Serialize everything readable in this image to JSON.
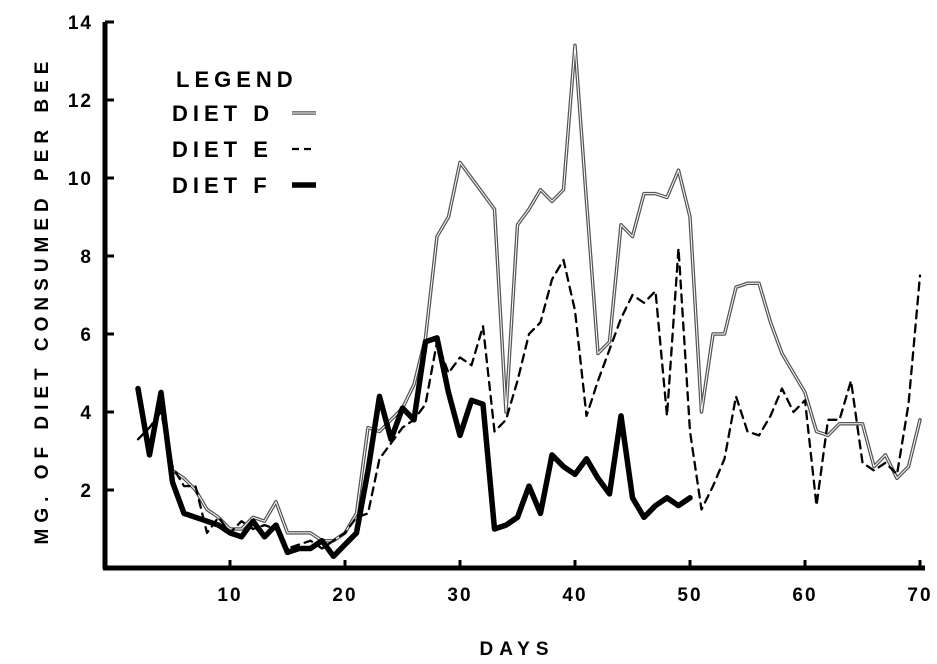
{
  "chart_data": {
    "type": "line",
    "xlabel": "DAYS",
    "ylabel": "MG. OF DIET CONSUMED PER BEE",
    "xlim": [
      0,
      70
    ],
    "ylim": [
      0,
      14
    ],
    "xticks": [
      "10",
      "20",
      "30",
      "40",
      "50",
      "60",
      "70"
    ],
    "yticks": [
      "2",
      "4",
      "6",
      "8",
      "10",
      "12",
      "14"
    ],
    "legend": {
      "title": "LEGEND",
      "position": "top-left"
    },
    "series": [
      {
        "name": "DIET  D",
        "style": "double-thin",
        "x": [
          2,
          3,
          4,
          5,
          6,
          7,
          8,
          9,
          10,
          11,
          12,
          13,
          14,
          15,
          16,
          17,
          18,
          19,
          20,
          21,
          22,
          23,
          24,
          25,
          26,
          27,
          28,
          29,
          30,
          31,
          32,
          33,
          34,
          35,
          36,
          37,
          38,
          39,
          40,
          41,
          42,
          43,
          44,
          45,
          46,
          47,
          48,
          49,
          50,
          51,
          52,
          53,
          54,
          55,
          56,
          57,
          58,
          59,
          60,
          61,
          62,
          63,
          64,
          65,
          66,
          67,
          68,
          69,
          70
        ],
        "values": [
          4.5,
          3.0,
          4.5,
          2.5,
          2.3,
          2.0,
          1.5,
          1.3,
          1.0,
          1.0,
          1.3,
          1.2,
          1.7,
          0.9,
          0.9,
          0.9,
          0.7,
          0.7,
          0.9,
          1.4,
          3.6,
          3.5,
          3.8,
          4.1,
          4.7,
          5.9,
          8.5,
          9.0,
          10.4,
          10.0,
          9.6,
          9.2,
          4.0,
          8.8,
          9.2,
          9.7,
          9.4,
          9.7,
          13.4,
          9.4,
          5.5,
          5.8,
          8.8,
          8.5,
          9.6,
          9.6,
          9.5,
          10.2,
          9.0,
          4.0,
          6.0,
          6.0,
          7.2,
          7.3,
          7.3,
          6.3,
          5.5,
          5.0,
          4.5,
          3.5,
          3.4,
          3.7,
          3.7,
          3.7,
          2.6,
          2.9,
          2.3,
          2.6,
          3.8
        ]
      },
      {
        "name": "DIET  E",
        "style": "dashed",
        "x": [
          2,
          3,
          4,
          5,
          6,
          7,
          8,
          9,
          10,
          11,
          12,
          13,
          14,
          15,
          16,
          17,
          18,
          19,
          20,
          21,
          22,
          23,
          24,
          25,
          26,
          27,
          28,
          29,
          30,
          31,
          32,
          33,
          34,
          35,
          36,
          37,
          38,
          39,
          40,
          41,
          42,
          43,
          44,
          45,
          46,
          47,
          48,
          49,
          50,
          51,
          52,
          53,
          54,
          55,
          56,
          57,
          58,
          59,
          60,
          61,
          62,
          63,
          64,
          65,
          66,
          67,
          68,
          69,
          70
        ],
        "values": [
          3.3,
          3.6,
          4.0,
          2.6,
          2.1,
          2.1,
          0.9,
          1.3,
          0.9,
          1.2,
          1.0,
          1.1,
          1.0,
          0.5,
          0.6,
          0.7,
          0.5,
          0.7,
          0.9,
          1.3,
          1.4,
          2.8,
          3.2,
          3.6,
          3.8,
          4.2,
          5.8,
          5.0,
          5.4,
          5.2,
          6.2,
          3.5,
          3.8,
          4.8,
          6.0,
          6.3,
          7.4,
          7.9,
          6.6,
          3.9,
          4.8,
          5.6,
          6.4,
          7.0,
          6.8,
          7.1,
          3.9,
          8.2,
          3.5,
          1.5,
          2.1,
          2.8,
          4.4,
          3.5,
          3.4,
          3.9,
          4.6,
          4.0,
          4.3,
          1.6,
          3.8,
          3.8,
          4.8,
          2.7,
          2.5,
          2.7,
          2.4,
          4.2,
          7.5
        ]
      },
      {
        "name": "DIET  F",
        "style": "thick",
        "x": [
          2,
          3,
          4,
          5,
          6,
          7,
          8,
          9,
          10,
          11,
          12,
          13,
          14,
          15,
          16,
          17,
          18,
          19,
          20,
          21,
          22,
          23,
          24,
          25,
          26,
          27,
          28,
          29,
          30,
          31,
          32,
          33,
          34,
          35,
          36,
          37,
          38,
          39,
          40,
          41,
          42,
          43,
          44,
          45,
          46,
          47,
          48,
          49,
          50
        ],
        "values": [
          4.6,
          2.9,
          4.5,
          2.2,
          1.4,
          1.3,
          1.2,
          1.1,
          0.9,
          0.8,
          1.2,
          0.8,
          1.1,
          0.4,
          0.5,
          0.5,
          0.7,
          0.3,
          0.6,
          0.9,
          2.5,
          4.4,
          3.3,
          4.1,
          3.8,
          5.8,
          5.9,
          4.5,
          3.4,
          4.3,
          4.2,
          1.0,
          1.1,
          1.3,
          2.1,
          1.4,
          2.9,
          2.6,
          2.4,
          2.8,
          2.3,
          1.9,
          3.9,
          1.8,
          1.3,
          1.6,
          1.8,
          1.6,
          1.8
        ]
      }
    ]
  }
}
